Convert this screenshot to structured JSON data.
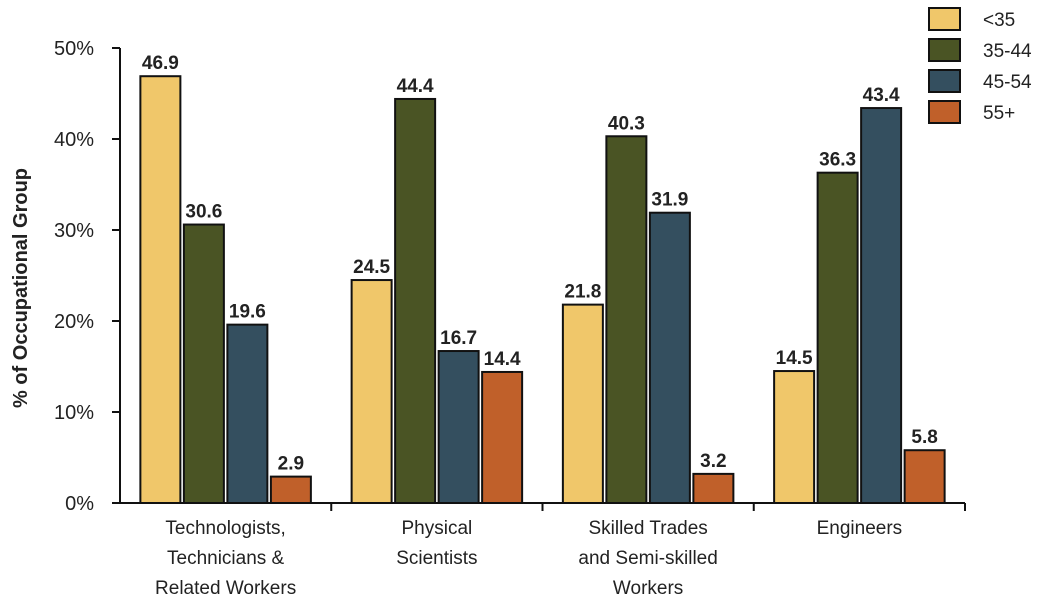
{
  "chart_data": {
    "type": "bar",
    "ylabel": "% of Occupational Group",
    "ylim": [
      0,
      50
    ],
    "yticks": [
      0,
      10,
      20,
      30,
      40,
      50
    ],
    "ytick_labels": [
      "0%",
      "10%",
      "20%",
      "30%",
      "40%",
      "50%"
    ],
    "grid": false,
    "legend_position": "top-right",
    "categories": [
      [
        "Technologists,",
        "Technicians &",
        "Related Workers"
      ],
      [
        "Physical",
        "Scientists"
      ],
      [
        "Skilled Trades",
        "and Semi-skilled",
        "Workers"
      ],
      [
        "Engineers"
      ]
    ],
    "series": [
      {
        "name": "<35",
        "color": "#f0c76a",
        "values": [
          46.9,
          24.5,
          21.8,
          14.5
        ]
      },
      {
        "name": "35-44",
        "color": "#4a5424",
        "values": [
          30.6,
          44.4,
          40.3,
          36.3
        ]
      },
      {
        "name": "45-54",
        "color": "#344f5f",
        "values": [
          19.6,
          16.7,
          31.9,
          43.4
        ]
      },
      {
        "name": "55+",
        "color": "#c0602a",
        "values": [
          2.9,
          14.4,
          3.2,
          5.8
        ]
      }
    ]
  }
}
